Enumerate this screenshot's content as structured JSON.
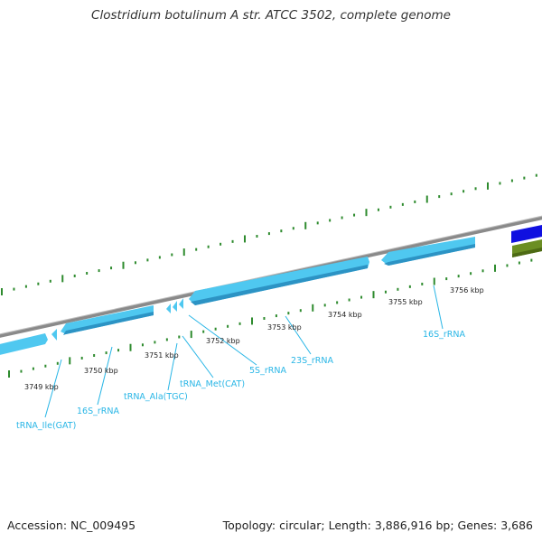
{
  "title": "Clostridium botulinum A str. ATCC 3502, complete genome",
  "footer": {
    "accession": "Accession: NC_009495",
    "summary": "Topology: circular; Length: 3,886,916 bp; Genes: 3,686"
  },
  "colors": {
    "backbone": "#8a8a8a",
    "rna_feature": "#4fc8f0",
    "rna_feature_shade": "#2c93c4",
    "cds_blue": "#1010e0",
    "cds_green": "#6b8e23",
    "tick": "#2e8b2e",
    "label": "#29b6e6"
  },
  "tick_labels": [
    {
      "label": "3749 kbp"
    },
    {
      "label": "3750 kbp"
    },
    {
      "label": "3751 kbp"
    },
    {
      "label": "3752 kbp"
    },
    {
      "label": "3753 kbp"
    },
    {
      "label": "3754 kbp"
    },
    {
      "label": "3755 kbp"
    },
    {
      "label": "3756 kbp"
    }
  ],
  "features": [
    {
      "label": "tRNA_Ile(GAT)"
    },
    {
      "label": "16S_rRNA"
    },
    {
      "label": "tRNA_Ala(TGC)"
    },
    {
      "label": "tRNA_Met(CAT)"
    },
    {
      "label": "5S_rRNA"
    },
    {
      "label": "23S_rRNA"
    },
    {
      "label": "16S_rRNA"
    }
  ]
}
